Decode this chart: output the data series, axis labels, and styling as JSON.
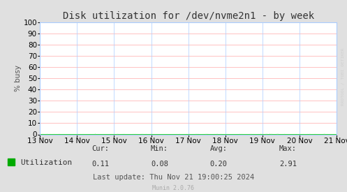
{
  "title": "Disk utilization for /dev/nvme2n1 - by week",
  "ylabel": "% busy",
  "bg_color": "#e0e0e0",
  "plot_bg_color": "#ffffff",
  "grid_color_h": "#ffaaaa",
  "grid_color_v": "#aaccff",
  "line_color": "#00cc00",
  "x_tick_labels": [
    "13 Nov",
    "14 Nov",
    "15 Nov",
    "16 Nov",
    "17 Nov",
    "18 Nov",
    "19 Nov",
    "20 Nov",
    "21 Nov"
  ],
  "x_tick_positions": [
    0,
    1,
    2,
    3,
    4,
    5,
    6,
    7,
    8
  ],
  "ylim": [
    0,
    100
  ],
  "yticks": [
    0,
    10,
    20,
    30,
    40,
    50,
    60,
    70,
    80,
    90,
    100
  ],
  "legend_label": "Utilization",
  "legend_color": "#00aa00",
  "cur_val": "0.11",
  "min_val": "0.08",
  "avg_val": "0.20",
  "max_val": "2.91",
  "last_update": "Last update: Thu Nov 21 19:00:25 2024",
  "munin_version": "Munin 2.0.76",
  "watermark": "RRDTOOL / TOBI OETIKER",
  "title_fontsize": 10,
  "axis_fontsize": 7.5,
  "legend_fontsize": 8,
  "stats_fontsize": 7.5,
  "footer_fontsize": 6
}
